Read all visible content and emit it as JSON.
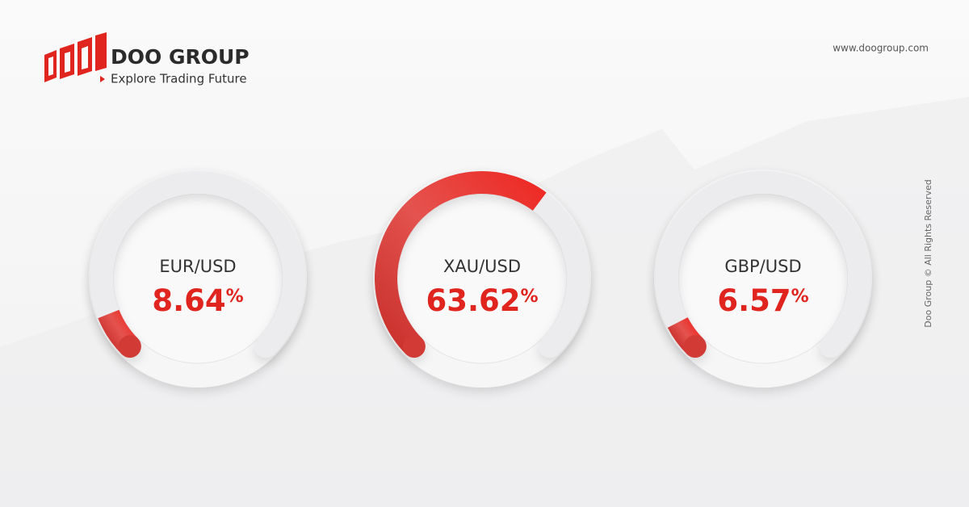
{
  "header": {
    "brand": "DOO GROUP",
    "tagline": "Explore Trading Future",
    "website": "www.doogroup.com"
  },
  "footer": {
    "copyright": "Doo Group © All Rights Reserved"
  },
  "gauges": {
    "range": [
      0,
      100
    ],
    "unit": "%",
    "items": [
      {
        "label": "EUR/USD",
        "value": 8.64
      },
      {
        "label": "XAU/USD",
        "value": 63.62
      },
      {
        "label": "GBP/USD",
        "value": 6.57
      }
    ]
  }
}
